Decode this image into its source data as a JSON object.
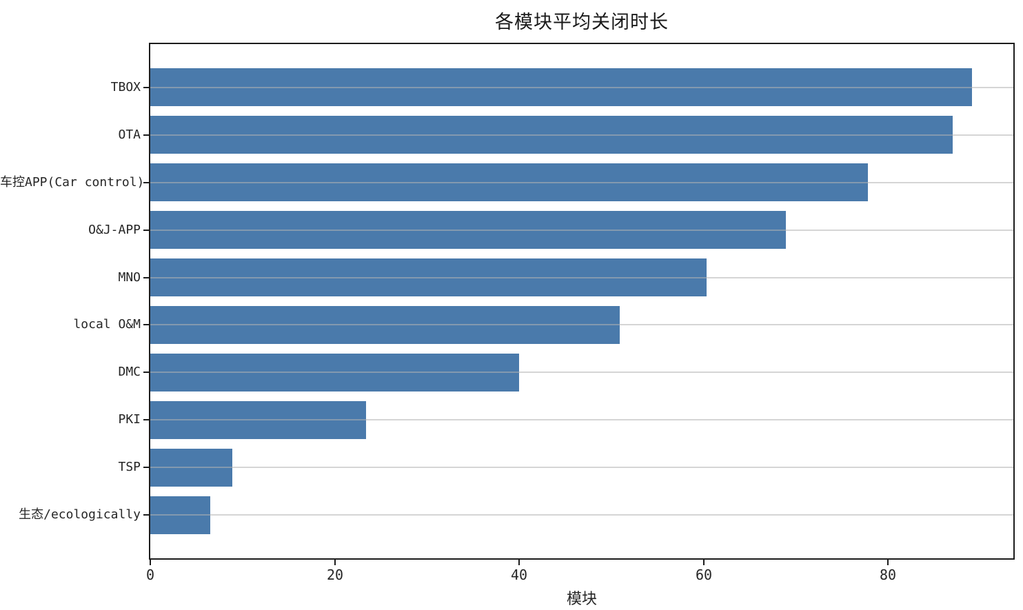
{
  "chart_data": {
    "type": "bar",
    "orientation": "horizontal",
    "title": "各模块平均关闭时长",
    "xlabel": "模块",
    "ylabel": "",
    "categories": [
      "TBOX",
      "OTA",
      "车控APP(Car control)",
      "O&J-APP",
      "MNO",
      "local O&M",
      "DMC",
      "PKI",
      "TSP",
      "生态/ecologically"
    ],
    "values": [
      89.1,
      87.0,
      77.8,
      68.9,
      60.3,
      50.9,
      40.0,
      23.4,
      8.9,
      6.5
    ],
    "xticks": [
      0,
      20,
      40,
      60,
      80
    ],
    "xlim": [
      0,
      93.6
    ],
    "grid": "horizontal-only",
    "legend": "none",
    "bar_color": "#4a7aab",
    "grid_color": "rgba(178,178,178,0.55)",
    "spine_color": "#1c1c1c",
    "text_color": "#262626",
    "background_color": "#ffffff"
  }
}
